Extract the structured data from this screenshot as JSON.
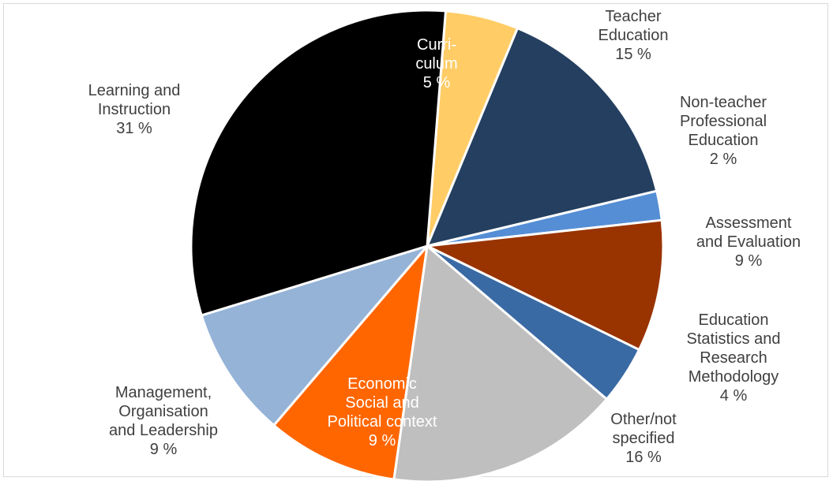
{
  "chart_data": {
    "type": "pie",
    "title": "",
    "slices": [
      {
        "lines": [
          "Curri-",
          "culum",
          "5 %"
        ],
        "value": 5,
        "color": "#FFCC66",
        "label_position": "inside"
      },
      {
        "lines": [
          "Teacher",
          "Education",
          "15 %"
        ],
        "value": 15,
        "color": "#243F60",
        "label_position": "outside"
      },
      {
        "lines": [
          "Non-teacher",
          "Professional",
          "Education",
          "2 %"
        ],
        "value": 2,
        "color": "#558ED5",
        "label_position": "outside"
      },
      {
        "lines": [
          "Assessment",
          "and Evaluation",
          "9 %"
        ],
        "value": 9,
        "color": "#993300",
        "label_position": "outside"
      },
      {
        "lines": [
          "Education",
          "Statistics and",
          "Research",
          "Methodology",
          "4 %"
        ],
        "value": 4,
        "color": "#3A6AA4",
        "label_position": "outside"
      },
      {
        "lines": [
          "Other/not",
          "specified",
          "16 %"
        ],
        "value": 16,
        "color": "#BFBFBF",
        "label_position": "outside"
      },
      {
        "lines": [
          "Economic",
          "Social and",
          "Political context",
          "9 %"
        ],
        "value": 9,
        "color": "#FF6600",
        "label_position": "inside"
      },
      {
        "lines": [
          "Management,",
          "Organisation",
          "and Leadership",
          "9 %"
        ],
        "value": 9,
        "color": "#95B3D7",
        "label_position": "outside"
      },
      {
        "lines": [
          "Learning and",
          "Instruction",
          "31 %"
        ],
        "value": 31,
        "color": "#000000",
        "label_position": "outside"
      }
    ]
  }
}
